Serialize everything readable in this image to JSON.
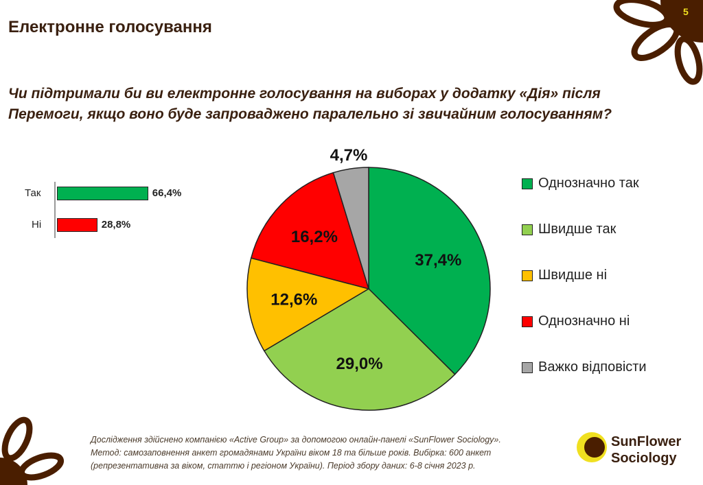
{
  "page": {
    "title": "Електронне голосування",
    "number": "5",
    "question": "Чи підтримали би ви електронне голосування на виборах у додатку «Дія» після Перемоги, якщо воно буде запроваджено паралельно зі звичайним голосуванням?"
  },
  "footnote": [
    "Дослідження здійснено компанією «Active Group» за допомогою онлайн-панелі «SunFlower Sociology».",
    "Метод: самозаповнення анкет громадянами України віком 18 та більше років. Вибірка: 600 анкет",
    "(репрезентативна за віком, статтю і регіоном України). Період збору даних: 6-8 січня 2023 р."
  ],
  "logo": {
    "line1": "SunFlower",
    "line2": "Sociology"
  },
  "chart_data": [
    {
      "type": "bar",
      "orientation": "horizontal",
      "categories": [
        "Так",
        "Ні"
      ],
      "values": [
        66.4,
        28.8
      ],
      "labels": [
        "66,4%",
        "28,8%"
      ],
      "colors": [
        "#00b050",
        "#ff0000"
      ]
    },
    {
      "type": "pie",
      "start": "top",
      "direction": "clockwise",
      "categories": [
        "Однозначно так",
        "Швидше так",
        "Швидше ні",
        "Однозначно ні",
        "Важко відповісти"
      ],
      "values": [
        37.4,
        29.0,
        12.6,
        16.2,
        4.7
      ],
      "labels": [
        "37,4%",
        "29,0%",
        "12,6%",
        "16,2%",
        "4,7%"
      ],
      "colors": [
        "#00b050",
        "#92d050",
        "#ffc000",
        "#ff0000",
        "#a6a6a6"
      ],
      "legend": "right"
    }
  ]
}
